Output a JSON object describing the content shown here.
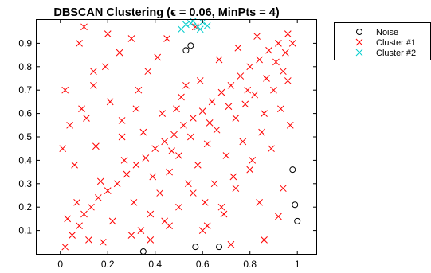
{
  "chart_data": {
    "type": "scatter",
    "title": "DBSCAN Clustering (ϵ = 0.06, MinPts = 4)",
    "xlabel": "",
    "ylabel": "",
    "xlim": [
      -0.1,
      1.08
    ],
    "ylim": [
      0,
      1.0
    ],
    "x_ticks": [
      0,
      0.2,
      0.4,
      0.6,
      0.8,
      1
    ],
    "x_tick_labels": [
      "0",
      "0.2",
      "0.4",
      "0.6",
      "0.8",
      "1"
    ],
    "y_ticks": [
      0.1,
      0.2,
      0.3,
      0.4,
      0.5,
      0.6,
      0.7,
      0.8,
      0.9
    ],
    "y_tick_labels": [
      "0.1",
      "0.2",
      "0.3",
      "0.4",
      "0.5",
      "0.6",
      "0.7",
      "0.8",
      "0.9"
    ],
    "grid": false,
    "legend_position": "top-right outside",
    "series": [
      {
        "name": "Noise",
        "marker": "circle",
        "color": "#000000",
        "x": [
          0.53,
          0.55,
          0.98,
          0.99,
          1.0,
          0.35,
          0.57,
          0.67
        ],
        "y": [
          0.87,
          0.89,
          0.36,
          0.21,
          0.14,
          0.01,
          0.03,
          0.03
        ]
      },
      {
        "name": "Cluster #1",
        "marker": "x",
        "color": "#ff0000",
        "x": [
          0.02,
          0.05,
          0.08,
          0.1,
          0.13,
          0.16,
          0.2,
          0.24,
          0.28,
          0.32,
          0.36,
          0.4,
          0.44,
          0.48,
          0.52,
          0.56,
          0.6,
          0.64,
          0.68,
          0.72,
          0.76,
          0.8,
          0.84,
          0.88,
          0.92,
          0.96,
          0.03,
          0.07,
          0.12,
          0.17,
          0.22,
          0.27,
          0.31,
          0.35,
          0.39,
          0.43,
          0.47,
          0.51,
          0.55,
          0.59,
          0.63,
          0.67,
          0.71,
          0.75,
          0.79,
          0.83,
          0.87,
          0.91,
          0.95,
          0.98,
          0.01,
          0.04,
          0.09,
          0.14,
          0.19,
          0.25,
          0.3,
          0.34,
          0.38,
          0.42,
          0.46,
          0.5,
          0.54,
          0.58,
          0.62,
          0.66,
          0.7,
          0.74,
          0.78,
          0.82,
          0.86,
          0.9,
          0.94,
          0.97,
          0.06,
          0.11,
          0.15,
          0.21,
          0.26,
          0.33,
          0.37,
          0.41,
          0.45,
          0.49,
          0.53,
          0.57,
          0.61,
          0.65,
          0.69,
          0.73,
          0.77,
          0.81,
          0.85,
          0.89,
          0.93,
          0.96,
          0.02,
          0.08,
          0.14,
          0.2,
          0.26,
          0.32,
          0.38,
          0.44,
          0.5,
          0.56,
          0.62,
          0.68,
          0.74,
          0.8,
          0.86,
          0.92,
          0.1,
          0.18,
          0.3,
          0.46,
          0.6,
          0.72,
          0.84,
          0.94
        ],
        "y": [
          0.03,
          0.08,
          0.12,
          0.17,
          0.2,
          0.24,
          0.27,
          0.3,
          0.34,
          0.38,
          0.41,
          0.45,
          0.48,
          0.51,
          0.55,
          0.58,
          0.61,
          0.65,
          0.69,
          0.72,
          0.76,
          0.8,
          0.83,
          0.87,
          0.9,
          0.94,
          0.15,
          0.22,
          0.06,
          0.31,
          0.14,
          0.4,
          0.22,
          0.52,
          0.33,
          0.6,
          0.44,
          0.67,
          0.5,
          0.74,
          0.56,
          0.83,
          0.63,
          0.88,
          0.7,
          0.93,
          0.75,
          0.82,
          0.86,
          0.9,
          0.45,
          0.55,
          0.62,
          0.72,
          0.8,
          0.86,
          0.92,
          0.1,
          0.17,
          0.26,
          0.35,
          0.42,
          0.3,
          0.38,
          0.47,
          0.53,
          0.42,
          0.58,
          0.64,
          0.68,
          0.6,
          0.7,
          0.78,
          0.55,
          0.38,
          0.58,
          0.46,
          0.65,
          0.57,
          0.7,
          0.78,
          0.84,
          0.92,
          0.62,
          0.72,
          0.97,
          0.22,
          0.3,
          0.17,
          0.33,
          0.48,
          0.4,
          0.52,
          0.45,
          0.62,
          0.74,
          0.7,
          0.9,
          0.78,
          0.94,
          0.5,
          0.62,
          0.06,
          0.14,
          0.2,
          0.26,
          0.12,
          0.2,
          0.28,
          0.36,
          0.06,
          0.16,
          0.97,
          0.05,
          0.08,
          0.12,
          0.1,
          0.04,
          0.22,
          0.28
        ]
      },
      {
        "name": "Cluster #2",
        "marker": "x",
        "color": "#00cccc",
        "x": [
          0.51,
          0.53,
          0.56,
          0.58,
          0.6,
          0.62,
          0.55,
          0.59
        ],
        "y": [
          0.96,
          0.98,
          0.995,
          0.97,
          0.99,
          0.975,
          0.985,
          0.96
        ]
      }
    ]
  }
}
